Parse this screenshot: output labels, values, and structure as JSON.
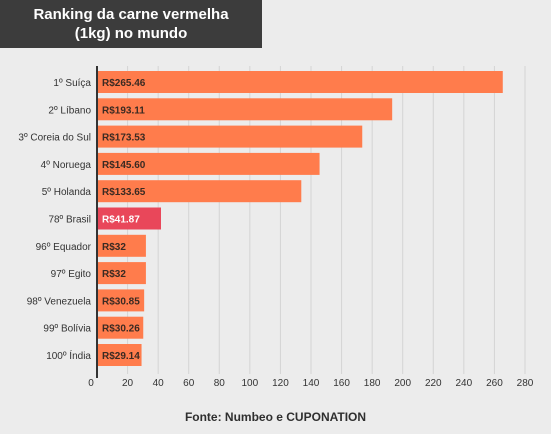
{
  "title": {
    "line1": "Ranking da carne vermelha",
    "line2": "(1kg) no mundo"
  },
  "source": "Fonte: Numbeo e CUPONATION",
  "colors": {
    "bar": "#ff7c4c",
    "highlight": "#e9475a",
    "axis": "#333333",
    "grid": "#d4d4d4",
    "text": "#333333"
  },
  "chart_data": {
    "type": "bar",
    "orientation": "horizontal",
    "categories": [
      "1º Suíça",
      "2º Líbano",
      "3º Coreia do Sul",
      "4º Noruega",
      "5º Holanda",
      "78º Brasil",
      "96º Equador",
      "97º Egito",
      "98º Venezuela",
      "99º Bolívia",
      "100º Índia"
    ],
    "values": [
      265.46,
      193.11,
      173.53,
      145.6,
      133.65,
      41.87,
      32,
      32,
      30.85,
      30.26,
      29.14
    ],
    "value_labels": [
      "R$265.46",
      "R$193.11",
      "R$173.53",
      "R$145.60",
      "R$133.65",
      "R$41.87",
      "R$32",
      "R$32",
      "R$30.85",
      "R$30.26",
      "R$29.14"
    ],
    "highlight_index": 5,
    "xlim": [
      0,
      280
    ],
    "xticks": [
      0,
      20,
      40,
      60,
      80,
      100,
      120,
      140,
      160,
      180,
      200,
      220,
      240,
      260,
      280
    ],
    "grid": true
  }
}
